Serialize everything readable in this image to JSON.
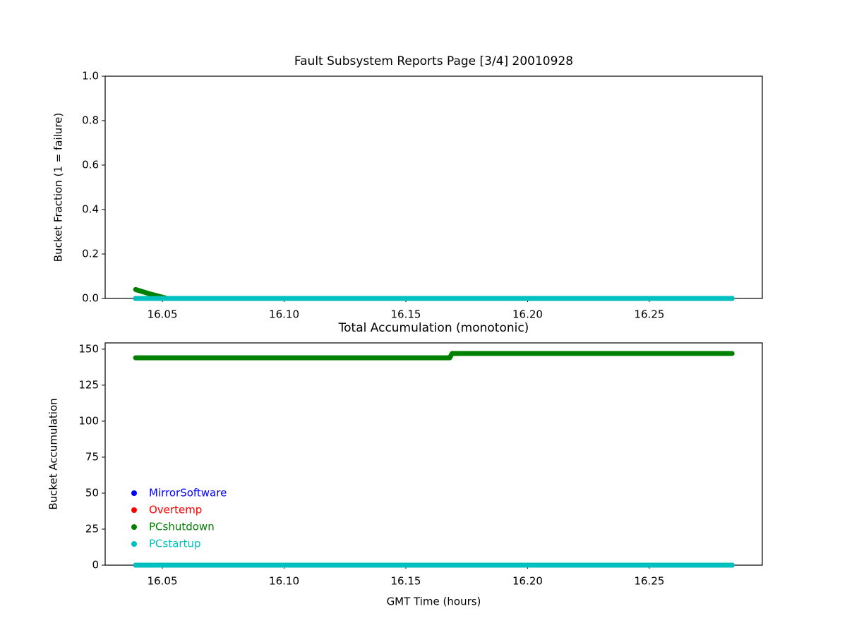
{
  "chart_data": [
    {
      "type": "line",
      "title": "Fault Subsystem Reports Page [3/4] 20010928",
      "y_label": "Bucket Fraction (1 = failure)",
      "x": [
        16.039,
        16.045,
        16.052,
        16.1,
        16.15,
        16.2,
        16.25,
        16.284
      ],
      "series": [
        {
          "color": "#0000ff",
          "values": [
            0,
            0,
            0,
            0,
            0,
            0,
            0,
            0
          ]
        },
        {
          "color": "#ff0000",
          "values": [
            0,
            0,
            0,
            0,
            0,
            0,
            0,
            0
          ]
        },
        {
          "color": "#008000",
          "values": [
            0.04,
            0.02,
            0,
            0,
            0,
            0,
            0,
            0
          ]
        },
        {
          "color": "#00bfbf",
          "values": [
            0,
            0,
            0,
            0,
            0,
            0,
            0,
            0
          ]
        }
      ],
      "xlim": [
        16.0265,
        16.2964
      ],
      "ylim": [
        0,
        1
      ],
      "xticks": [
        16.05,
        {
          "value": 16.1,
          "label": "16.10"
        },
        16.15,
        {
          "value": 16.2,
          "label": "16.20"
        },
        16.25
      ],
      "yticks": [
        {
          "value": 0,
          "label": "0.0"
        },
        0.2,
        0.4,
        0.6,
        0.8,
        {
          "value": 1,
          "label": "1.0"
        }
      ]
    },
    {
      "type": "line",
      "title": "Total Accumulation (monotonic)",
      "x_label": "GMT Time (hours)",
      "y_label": "Bucket Accumulation",
      "x": [
        16.039,
        16.1,
        16.168,
        16.169,
        16.2,
        16.25,
        16.284
      ],
      "series": [
        {
          "name": "MirrorSoftware",
          "color": "#0000ff",
          "values": [
            0,
            0,
            0,
            0,
            0,
            0,
            0
          ]
        },
        {
          "name": "Overtemp",
          "color": "#ff0000",
          "values": [
            0,
            0,
            0,
            0,
            0,
            0,
            0
          ]
        },
        {
          "name": "PCshutdown",
          "color": "#008000",
          "values": [
            144,
            144,
            144,
            147,
            147,
            147,
            147
          ]
        },
        {
          "name": "PCstartup",
          "color": "#00bfbf",
          "values": [
            0,
            0,
            0,
            0,
            0,
            0,
            0
          ]
        }
      ],
      "xlim": [
        16.0265,
        16.2964
      ],
      "ylim": [
        0,
        154.35
      ],
      "xticks": [
        16.05,
        {
          "value": 16.1,
          "label": "16.10"
        },
        16.15,
        {
          "value": 16.2,
          "label": "16.20"
        },
        16.25
      ],
      "yticks": [
        0,
        25,
        50,
        75,
        100,
        125,
        150
      ],
      "legend": "lower left"
    }
  ]
}
